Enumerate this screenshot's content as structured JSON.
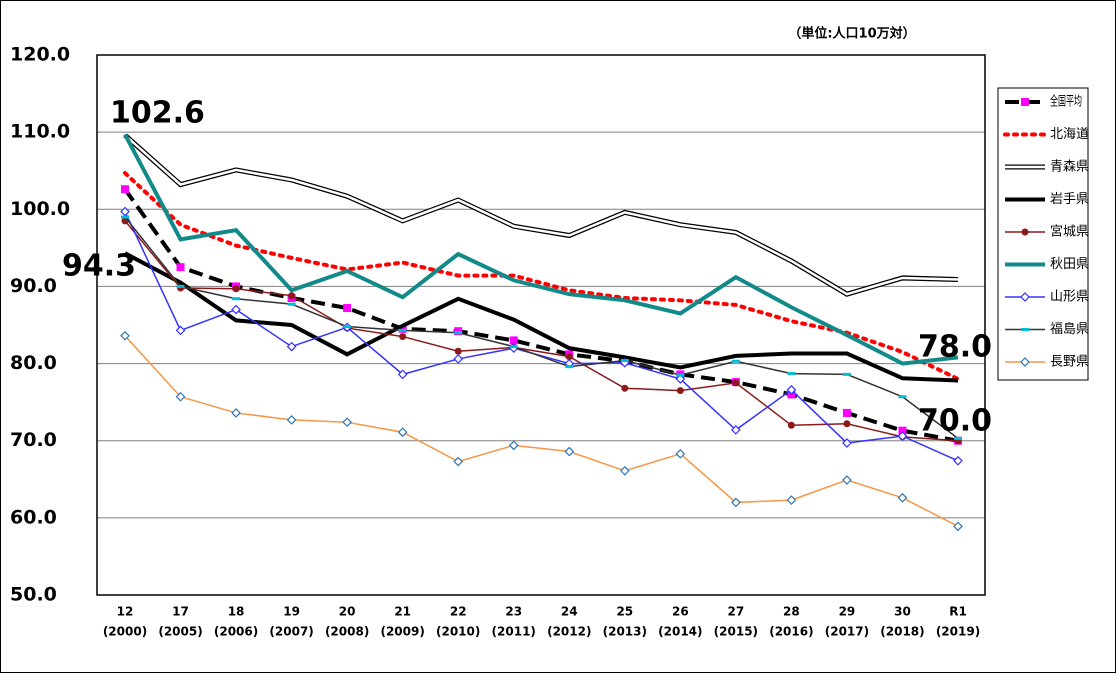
{
  "chart_data": {
    "type": "line",
    "unit_note": "（単位:人口10万対）",
    "categories": [
      "12",
      "17",
      "18",
      "19",
      "20",
      "21",
      "22",
      "23",
      "24",
      "25",
      "26",
      "27",
      "28",
      "29",
      "30",
      "R1"
    ],
    "category_years": [
      "(2000)",
      "(2005)",
      "(2006)",
      "(2007)",
      "(2008)",
      "(2009)",
      "(2010)",
      "(2011)",
      "(2012)",
      "(2013)",
      "(2014)",
      "(2015)",
      "(2016)",
      "(2017)",
      "(2018)",
      "(2019)"
    ],
    "ylim": [
      50,
      120
    ],
    "yticks": [
      {
        "value": 50,
        "label": "50.0"
      },
      {
        "value": 60,
        "label": "60.0"
      },
      {
        "value": 70,
        "label": "70.0"
      },
      {
        "value": 80,
        "label": "80.0"
      },
      {
        "value": 90,
        "label": "90.0"
      },
      {
        "value": 100,
        "label": "100.0"
      },
      {
        "value": 110,
        "label": "110.0"
      },
      {
        "value": 120,
        "label": "120.0"
      }
    ],
    "grid": true,
    "legend": "right",
    "annotations": [
      "102.6",
      "94.3",
      "78.0",
      "70.0"
    ],
    "series": [
      {
        "name": "全国平均",
        "color": "#000000",
        "style": "dashed",
        "weight": "thick",
        "marker": "square",
        "marker_color": "#ff00ff",
        "values": [
          102.6,
          92.5,
          90.0,
          88.5,
          87.2,
          84.5,
          84.2,
          83.0,
          81.2,
          80.3,
          78.6,
          77.6,
          76.0,
          73.6,
          71.3,
          70.0
        ]
      },
      {
        "name": "北海道",
        "color": "#ff0000",
        "style": "dotted",
        "weight": "thick",
        "marker": "none",
        "values": [
          104.7,
          98.0,
          95.3,
          93.7,
          92.2,
          93.1,
          91.4,
          91.4,
          89.5,
          88.5,
          88.2,
          87.6,
          85.5,
          84.0,
          81.5,
          78.0
        ]
      },
      {
        "name": "青森県",
        "color": "#000000",
        "style": "double",
        "weight": "thin",
        "marker": "none",
        "values": [
          109.6,
          103.2,
          105.1,
          103.8,
          101.7,
          98.5,
          101.2,
          97.8,
          96.6,
          99.6,
          98.0,
          97.0,
          93.3,
          89.0,
          91.1,
          90.9
        ]
      },
      {
        "name": "岩手県",
        "color": "#000000",
        "style": "solid",
        "weight": "thick",
        "marker": "none",
        "values": [
          94.3,
          90.5,
          85.6,
          85.0,
          81.2,
          84.9,
          88.4,
          85.7,
          82.0,
          80.8,
          79.5,
          81.0,
          81.3,
          81.3,
          78.1,
          77.8
        ]
      },
      {
        "name": "宮城県",
        "color": "#8b1a1a",
        "style": "solid",
        "weight": "thin",
        "marker": "circle",
        "values": [
          98.5,
          89.8,
          89.7,
          88.8,
          84.6,
          83.5,
          81.6,
          82.1,
          80.9,
          76.8,
          76.5,
          77.5,
          72.0,
          72.2,
          70.5,
          70.0
        ]
      },
      {
        "name": "秋田県",
        "color": "#138a8a",
        "style": "solid",
        "weight": "thick",
        "marker": "none",
        "values": [
          109.7,
          96.1,
          97.3,
          89.5,
          92.0,
          88.6,
          94.2,
          90.8,
          89.0,
          88.2,
          86.5,
          91.2,
          87.3,
          83.7,
          80.0,
          80.8
        ]
      },
      {
        "name": "山形県",
        "color": "#3333ff",
        "style": "solid",
        "weight": "thin",
        "marker": "diamond",
        "values": [
          99.7,
          84.3,
          87.0,
          82.2,
          84.7,
          78.6,
          80.6,
          82.0,
          80.0,
          80.1,
          78.0,
          71.4,
          76.6,
          69.7,
          70.6,
          67.4
        ]
      },
      {
        "name": "福島県",
        "color": "#333333",
        "style": "solid",
        "weight": "thin",
        "marker": "dash",
        "marker_color": "#00bcd4",
        "values": [
          99.0,
          90.0,
          88.4,
          87.7,
          84.8,
          84.3,
          84.0,
          82.2,
          79.6,
          80.4,
          78.5,
          80.3,
          78.7,
          78.6,
          75.7,
          70.3
        ]
      },
      {
        "name": "長野県",
        "color": "#f79646",
        "style": "solid",
        "weight": "thin",
        "marker": "diamond",
        "marker_color": "#2e75b6",
        "values": [
          83.6,
          75.7,
          73.6,
          72.7,
          72.4,
          71.1,
          67.3,
          69.4,
          68.6,
          66.1,
          68.3,
          62.0,
          62.3,
          64.9,
          62.6,
          58.9
        ]
      }
    ]
  }
}
